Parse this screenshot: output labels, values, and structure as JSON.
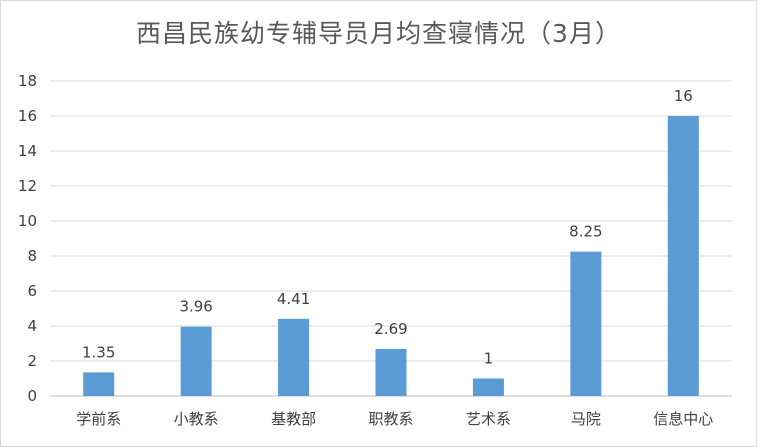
{
  "chart_data": {
    "type": "bar",
    "title": "西昌民族幼专辅导员月均查寝情况（3月）",
    "xlabel": "",
    "ylabel": "",
    "categories": [
      "学前系",
      "小教系",
      "基教部",
      "职教系",
      "艺术系",
      "马院",
      "信息中心"
    ],
    "values": [
      1.35,
      3.96,
      4.41,
      2.69,
      1,
      8.25,
      16
    ],
    "value_labels": [
      "1.35",
      "3.96",
      "4.41",
      "2.69",
      "1",
      "8.25",
      "16"
    ],
    "ylim": [
      0,
      18
    ],
    "yticks": [
      0,
      2,
      4,
      6,
      8,
      10,
      12,
      14,
      16,
      18
    ],
    "grid": true,
    "legend": "none",
    "colors": {
      "bar": "#5b9bd5",
      "grid": "#d9d9d9",
      "axis": "#bfbfbf",
      "text": "#404040",
      "title": "#595959"
    }
  }
}
